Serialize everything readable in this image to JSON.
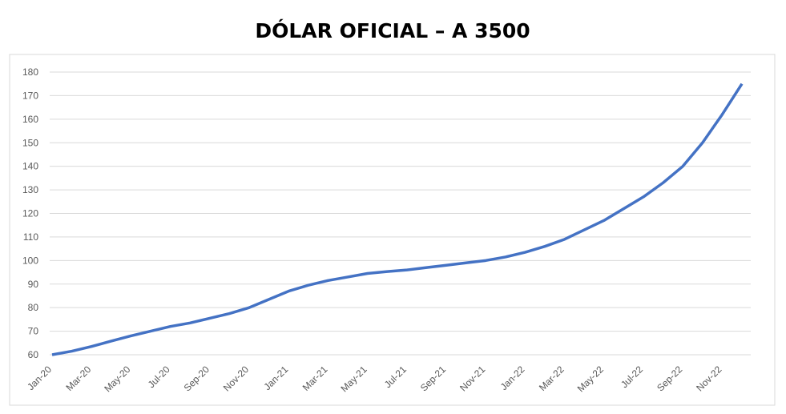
{
  "chart_data": {
    "type": "line",
    "title": "DÓLAR OFICIAL – A 3500",
    "categories": [
      "Jan-20",
      null,
      "Mar-20",
      null,
      "May-20",
      null,
      "Jul-20",
      null,
      "Sep-20",
      null,
      "Nov-20",
      null,
      "Jan-21",
      null,
      "Mar-21",
      null,
      "May-21",
      null,
      "Jul-21",
      null,
      "Sep-21",
      null,
      "Nov-21",
      null,
      "Jan-22",
      null,
      "Mar-22",
      null,
      "May-22",
      null,
      "Jul-22",
      null,
      "Sep-22",
      null,
      "Nov-22",
      null
    ],
    "series": [
      {
        "name": "A 3500",
        "color": "#4472c4",
        "values": [
          60,
          61.5,
          63.5,
          65.8,
          68,
          70,
          72,
          73.5,
          75.5,
          77.5,
          80,
          83.5,
          87,
          89.5,
          91.5,
          93,
          94.5,
          95.3,
          96,
          97,
          98,
          99,
          100,
          101.5,
          103.5,
          106,
          109,
          113,
          117,
          122,
          127,
          133,
          140,
          150,
          162,
          175
        ]
      }
    ],
    "ylim": [
      60,
      180
    ],
    "yticks": [
      60,
      70,
      80,
      90,
      100,
      110,
      120,
      130,
      140,
      150,
      160,
      170,
      180
    ],
    "grid": true
  }
}
